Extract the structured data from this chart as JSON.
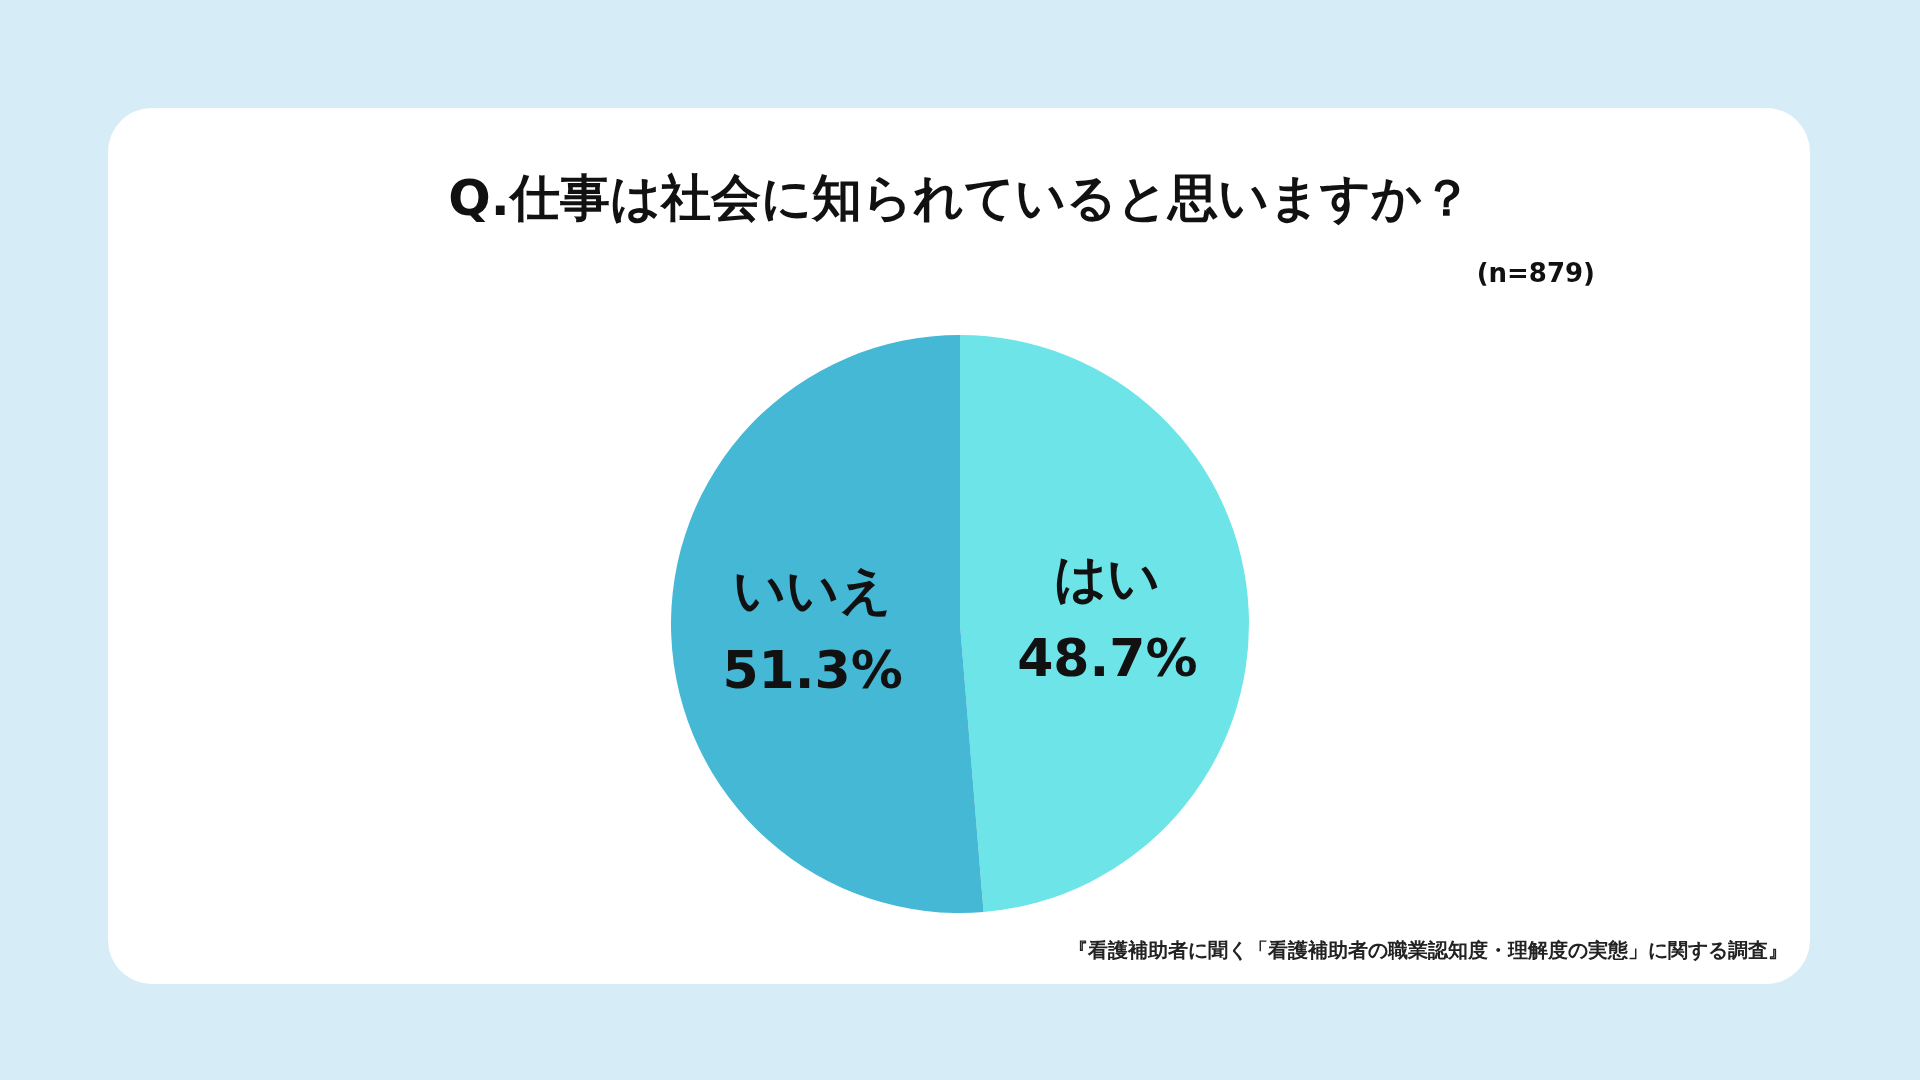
{
  "chart_data": {
    "type": "pie",
    "title": "Q.仕事は社会に知られていると思いますか？",
    "subtitle": "(n=879)",
    "categories": [
      "はい",
      "いいえ"
    ],
    "values": [
      48.7,
      51.3
    ],
    "colors": [
      "#6ce4e8",
      "#45b8d6"
    ],
    "value_labels": [
      "48.7%",
      "51.3%"
    ],
    "legend": false,
    "annotations": [
      "『看護補助者に聞く「看護補助者の職業認知度・理解度の実態」に関する調査』"
    ]
  }
}
